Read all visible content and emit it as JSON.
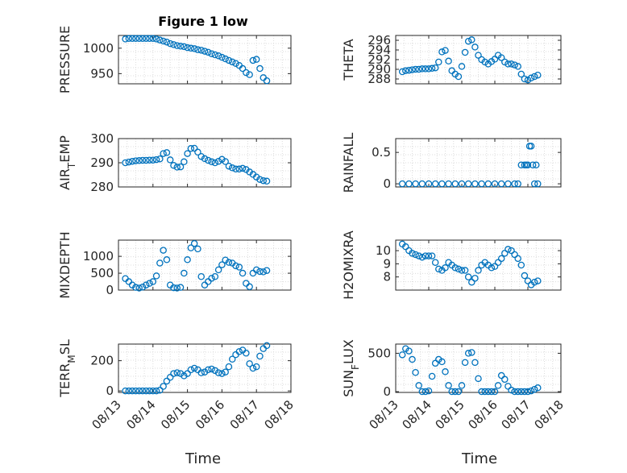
{
  "figure": {
    "title": "Figure 1 low",
    "xlabel": "Time",
    "date_ticks": [
      "08/13",
      "08/14",
      "08/15",
      "08/16",
      "08/17",
      "08/18"
    ],
    "marker_color": "#0072BD"
  },
  "chart_data": [
    {
      "type": "scatter",
      "title": "Figure 1 low",
      "ylabel": "PRESSURE",
      "xlim": [
        "08/13",
        "08/18"
      ],
      "ylim": [
        930,
        1025
      ],
      "yticks": [
        "950",
        "1000"
      ],
      "grid": true,
      "x": [
        13.2,
        13.3,
        13.4,
        13.5,
        13.6,
        13.7,
        13.8,
        13.9,
        14.0,
        14.1,
        14.2,
        14.3,
        14.4,
        14.5,
        14.6,
        14.7,
        14.8,
        14.9,
        15.0,
        15.1,
        15.2,
        15.3,
        15.4,
        15.5,
        15.6,
        15.7,
        15.8,
        15.9,
        16.0,
        16.1,
        16.2,
        16.3,
        16.4,
        16.5,
        16.6,
        16.7,
        16.8,
        16.9,
        17.0,
        17.1,
        17.2,
        17.3
      ],
      "y": [
        1018,
        1019,
        1019,
        1019,
        1019,
        1019,
        1019,
        1019,
        1019,
        1018,
        1016,
        1014,
        1012,
        1009,
        1007,
        1005,
        1004,
        1003,
        1001,
        1000,
        999,
        997,
        996,
        994,
        992,
        989,
        987,
        985,
        982,
        979,
        976,
        973,
        970,
        966,
        960,
        952,
        948,
        976,
        978,
        960,
        942,
        936
      ]
    },
    {
      "type": "scatter",
      "ylabel": "THETA",
      "xlim": [
        "08/13",
        "08/18"
      ],
      "ylim": [
        287,
        297
      ],
      "yticks": [
        "288",
        "290",
        "292",
        "294",
        "296"
      ],
      "grid": true,
      "x": [
        13.2,
        13.3,
        13.4,
        13.5,
        13.6,
        13.7,
        13.8,
        13.9,
        14.0,
        14.1,
        14.2,
        14.3,
        14.4,
        14.5,
        14.6,
        14.7,
        14.8,
        14.9,
        15.0,
        15.1,
        15.2,
        15.3,
        15.4,
        15.5,
        15.6,
        15.7,
        15.8,
        15.9,
        16.0,
        16.1,
        16.2,
        16.3,
        16.4,
        16.5,
        16.6,
        16.7,
        16.8,
        16.9,
        17.0,
        17.1,
        17.2,
        17.3
      ],
      "y": [
        289.5,
        289.7,
        289.8,
        289.9,
        290.0,
        290.0,
        290.1,
        290.1,
        290.1,
        290.2,
        290.3,
        291.5,
        293.6,
        293.9,
        291.7,
        289.7,
        289.0,
        288.5,
        290.6,
        293.5,
        295.8,
        296.1,
        294.6,
        292.9,
        292.0,
        291.5,
        291.1,
        291.6,
        292.1,
        292.9,
        292.4,
        291.5,
        291.1,
        291.1,
        290.9,
        290.6,
        289.0,
        288.0,
        287.8,
        288.2,
        288.5,
        288.8
      ]
    },
    {
      "type": "scatter",
      "ylabel": "AIR_TEMP",
      "xlim": [
        "08/13",
        "08/18"
      ],
      "ylim": [
        280,
        300
      ],
      "yticks": [
        "280",
        "290",
        "300"
      ],
      "grid": true,
      "x": [
        13.2,
        13.3,
        13.4,
        13.5,
        13.6,
        13.7,
        13.8,
        13.9,
        14.0,
        14.1,
        14.2,
        14.3,
        14.4,
        14.5,
        14.6,
        14.7,
        14.8,
        14.9,
        15.0,
        15.1,
        15.2,
        15.3,
        15.4,
        15.5,
        15.6,
        15.7,
        15.8,
        15.9,
        16.0,
        16.1,
        16.2,
        16.3,
        16.4,
        16.5,
        16.6,
        16.7,
        16.8,
        16.9,
        17.0,
        17.1,
        17.2,
        17.3
      ],
      "y": [
        290.0,
        290.3,
        290.6,
        290.8,
        290.9,
        291.0,
        291.0,
        291.1,
        291.1,
        291.3,
        291.6,
        293.8,
        294.2,
        291.2,
        288.9,
        288.2,
        288.3,
        290.4,
        293.8,
        295.9,
        296.0,
        294.4,
        292.6,
        291.7,
        291.0,
        290.4,
        290.0,
        290.6,
        291.4,
        290.5,
        288.6,
        287.9,
        287.4,
        287.4,
        287.7,
        287.2,
        286.2,
        285.2,
        284.1,
        283.1,
        282.6,
        282.4
      ]
    },
    {
      "type": "scatter",
      "ylabel": "RAINFALL",
      "xlim": [
        "08/13",
        "08/18"
      ],
      "ylim": [
        -0.05,
        0.72
      ],
      "yticks": [
        "0",
        "0.5"
      ],
      "grid": true,
      "x": [
        13.2,
        13.4,
        13.6,
        13.8,
        14.0,
        14.2,
        14.4,
        14.6,
        14.8,
        15.0,
        15.2,
        15.4,
        15.6,
        15.8,
        16.0,
        16.2,
        16.4,
        16.6,
        16.7,
        16.8,
        16.9,
        16.95,
        17.0,
        17.05,
        17.1,
        17.15,
        17.2,
        17.25,
        17.3
      ],
      "y": [
        0,
        0,
        0,
        0,
        0,
        0,
        0,
        0,
        0,
        0,
        0,
        0,
        0,
        0,
        0,
        0,
        0,
        0,
        0,
        0.3,
        0.3,
        0.3,
        0.3,
        0.6,
        0.6,
        0.3,
        0,
        0.3,
        0
      ]
    },
    {
      "type": "scatter",
      "ylabel": "MIXDEPTH",
      "xlim": [
        "08/13",
        "08/18"
      ],
      "ylim": [
        0,
        1480
      ],
      "yticks": [
        "0",
        "500",
        "1000"
      ],
      "grid": true,
      "x": [
        13.2,
        13.3,
        13.4,
        13.5,
        13.6,
        13.7,
        13.8,
        13.9,
        14.0,
        14.1,
        14.2,
        14.3,
        14.4,
        14.5,
        14.6,
        14.7,
        14.8,
        14.9,
        15.0,
        15.1,
        15.2,
        15.3,
        15.4,
        15.5,
        15.6,
        15.7,
        15.8,
        15.9,
        16.0,
        16.1,
        16.2,
        16.3,
        16.4,
        16.5,
        16.6,
        16.7,
        16.8,
        16.9,
        17.0,
        17.1,
        17.2,
        17.3
      ],
      "y": [
        340,
        250,
        150,
        80,
        60,
        90,
        150,
        200,
        250,
        420,
        800,
        1180,
        900,
        150,
        70,
        60,
        80,
        500,
        900,
        1250,
        1380,
        1220,
        400,
        150,
        250,
        350,
        400,
        600,
        750,
        890,
        820,
        800,
        720,
        680,
        500,
        200,
        100,
        500,
        600,
        550,
        540,
        580
      ]
    },
    {
      "type": "scatter",
      "ylabel": "H2OMIXRA",
      "xlim": [
        "08/13",
        "08/18"
      ],
      "ylim": [
        7,
        10.8
      ],
      "yticks": [
        "8",
        "9",
        "10"
      ],
      "grid": true,
      "x": [
        13.2,
        13.3,
        13.4,
        13.5,
        13.6,
        13.7,
        13.8,
        13.9,
        14.0,
        14.1,
        14.2,
        14.3,
        14.4,
        14.5,
        14.6,
        14.7,
        14.8,
        14.9,
        15.0,
        15.1,
        15.2,
        15.3,
        15.4,
        15.5,
        15.6,
        15.7,
        15.8,
        15.9,
        16.0,
        16.1,
        16.2,
        16.3,
        16.4,
        16.5,
        16.6,
        16.7,
        16.8,
        16.9,
        17.0,
        17.1,
        17.2,
        17.3
      ],
      "y": [
        10.5,
        10.3,
        10.0,
        9.8,
        9.7,
        9.6,
        9.5,
        9.6,
        9.6,
        9.6,
        9.1,
        8.6,
        8.5,
        8.7,
        9.1,
        8.9,
        8.7,
        8.6,
        8.5,
        8.5,
        8.0,
        7.6,
        7.9,
        8.5,
        8.9,
        9.1,
        8.9,
        8.7,
        8.8,
        9.1,
        9.4,
        9.8,
        10.1,
        10.0,
        9.7,
        9.4,
        8.9,
        8.1,
        7.7,
        7.4,
        7.6,
        7.7
      ]
    },
    {
      "type": "scatter",
      "ylabel": "TERR_MSL",
      "xlim": [
        "08/13",
        "08/18"
      ],
      "ylim": [
        -10,
        310
      ],
      "yticks": [
        "0",
        "200"
      ],
      "grid": true,
      "x": [
        13.2,
        13.3,
        13.4,
        13.5,
        13.6,
        13.7,
        13.8,
        13.9,
        14.0,
        14.1,
        14.2,
        14.3,
        14.4,
        14.5,
        14.6,
        14.7,
        14.8,
        14.9,
        15.0,
        15.1,
        15.2,
        15.3,
        15.4,
        15.5,
        15.6,
        15.7,
        15.8,
        15.9,
        16.0,
        16.1,
        16.2,
        16.3,
        16.4,
        16.5,
        16.6,
        16.7,
        16.8,
        16.9,
        17.0,
        17.1,
        17.2,
        17.3
      ],
      "y": [
        0,
        0,
        0,
        0,
        0,
        0,
        0,
        0,
        0,
        0,
        5,
        30,
        65,
        90,
        115,
        120,
        115,
        100,
        115,
        140,
        150,
        140,
        120,
        125,
        140,
        145,
        135,
        120,
        115,
        125,
        160,
        210,
        240,
        260,
        270,
        250,
        180,
        150,
        160,
        230,
        280,
        300
      ]
    },
    {
      "type": "scatter",
      "ylabel": "SUN_FLUX",
      "xlim": [
        "08/13",
        "08/18"
      ],
      "ylim": [
        -10,
        620
      ],
      "yticks": [
        "0",
        "500"
      ],
      "grid": true,
      "x": [
        13.2,
        13.3,
        13.4,
        13.5,
        13.6,
        13.7,
        13.8,
        13.9,
        14.0,
        14.1,
        14.2,
        14.3,
        14.4,
        14.5,
        14.6,
        14.7,
        14.8,
        14.9,
        15.0,
        15.1,
        15.2,
        15.3,
        15.4,
        15.5,
        15.6,
        15.7,
        15.8,
        15.9,
        16.0,
        16.1,
        16.2,
        16.3,
        16.4,
        16.5,
        16.6,
        16.7,
        16.8,
        16.9,
        17.0,
        17.1,
        17.2,
        17.3
      ],
      "y": [
        480,
        560,
        530,
        420,
        250,
        80,
        0,
        0,
        10,
        200,
        370,
        420,
        390,
        260,
        80,
        0,
        0,
        0,
        80,
        380,
        500,
        510,
        380,
        170,
        0,
        0,
        0,
        0,
        0,
        80,
        210,
        160,
        70,
        20,
        0,
        0,
        0,
        0,
        0,
        10,
        30,
        50
      ]
    }
  ]
}
